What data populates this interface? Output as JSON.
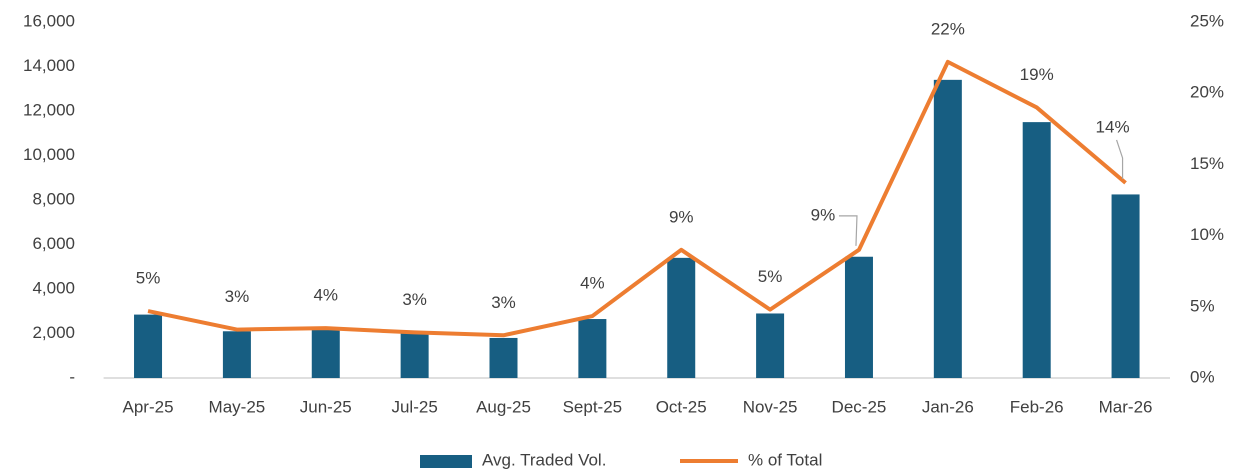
{
  "chart_data": {
    "type": "bar-line",
    "categories": [
      "Apr-25",
      "May-25",
      "Jun-25",
      "Jul-25",
      "Aug-25",
      "Sept-25",
      "Oct-25",
      "Nov-25",
      "Dec-25",
      "Jan-26",
      "Feb-26",
      "Mar-26"
    ],
    "series": [
      {
        "name": "Avg. Traded Vol.",
        "type": "bar",
        "color": "#175e82",
        "values": [
          2850,
          2100,
          2200,
          2000,
          1800,
          2650,
          5400,
          2900,
          5450,
          13400,
          11500,
          8250
        ]
      },
      {
        "name": "% of Total",
        "type": "line",
        "axis": "y2",
        "color": "#ed7d31",
        "values": [
          4.7,
          3.4,
          3.5,
          3.2,
          3.0,
          4.35,
          9.0,
          4.8,
          9.0,
          22.2,
          19.0,
          13.7
        ],
        "value_labels": [
          "5%",
          "3%",
          "4%",
          "3%",
          "3%",
          "4%",
          "9%",
          "5%",
          "9%",
          "22%",
          "19%",
          "14%"
        ]
      }
    ],
    "ylim": [
      0,
      16000
    ],
    "yticks": [
      {
        "value": 0,
        "label": "-"
      },
      {
        "value": 2000,
        "label": "2,000"
      },
      {
        "value": 4000,
        "label": "4,000"
      },
      {
        "value": 6000,
        "label": "6,000"
      },
      {
        "value": 8000,
        "label": "8,000"
      },
      {
        "value": 10000,
        "label": "10,000"
      },
      {
        "value": 12000,
        "label": "12,000"
      },
      {
        "value": 14000,
        "label": "14,000"
      },
      {
        "value": 16000,
        "label": "16,000"
      }
    ],
    "y2lim": [
      0,
      25
    ],
    "y2ticks": [
      {
        "value": 0,
        "label": "0%"
      },
      {
        "value": 5,
        "label": "5%"
      },
      {
        "value": 10,
        "label": "10%"
      },
      {
        "value": 15,
        "label": "15%"
      },
      {
        "value": 20,
        "label": "20%"
      },
      {
        "value": 25,
        "label": "25%"
      }
    ],
    "legend": "bottom",
    "grid": false
  }
}
